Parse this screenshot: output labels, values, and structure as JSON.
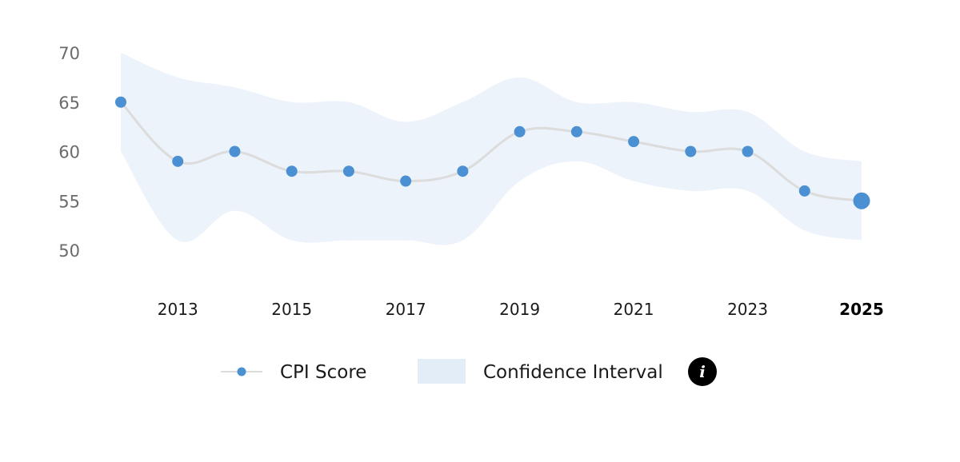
{
  "colors": {
    "point": "#4a90d2",
    "line": "#dcdcdc",
    "band": "#edf3fa",
    "legend_band": "#e3edf8",
    "info_button": "#000000"
  },
  "chart_data": {
    "type": "line",
    "x": [
      2012,
      2013,
      2014,
      2015,
      2016,
      2017,
      2018,
      2019,
      2020,
      2021,
      2022,
      2023,
      2024,
      2025
    ],
    "series": [
      {
        "name": "CPI Score",
        "values": [
          65,
          59,
          60,
          58,
          58,
          57,
          58,
          62,
          62,
          61,
          60,
          60,
          56,
          55
        ]
      }
    ],
    "confidence_interval": {
      "name": "Confidence Interval",
      "upper": [
        70,
        67.5,
        66.5,
        65,
        65,
        63,
        65,
        67.5,
        65,
        65,
        64,
        64,
        60,
        59
      ],
      "lower": [
        60,
        51,
        54,
        51,
        51,
        51,
        51,
        57,
        59,
        57,
        56,
        56,
        52,
        51
      ]
    },
    "highlighted_x": 2025,
    "y_ticks": [
      50,
      55,
      60,
      65,
      70
    ],
    "x_ticks": [
      2013,
      2015,
      2017,
      2019,
      2021,
      2023,
      2025
    ],
    "ylim": [
      50,
      70
    ],
    "xlim": [
      2012,
      2025
    ],
    "grid": false,
    "legend_position": "bottom",
    "legend": [
      {
        "label": "CPI Score",
        "kind": "line-point"
      },
      {
        "label": "Confidence Interval",
        "kind": "band"
      }
    ],
    "info_icon": "info-icon"
  }
}
